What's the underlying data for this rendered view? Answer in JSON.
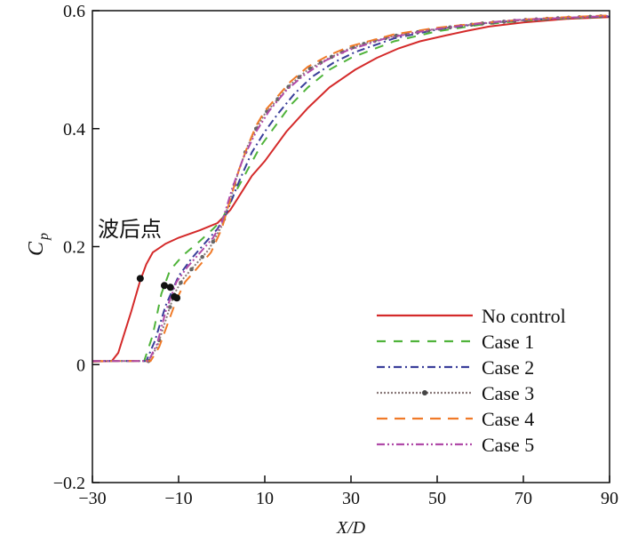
{
  "chart_data": {
    "type": "line",
    "title": "",
    "xlabel": "X/D",
    "ylabel": "C_p",
    "ylabel_main": "C",
    "ylabel_sub": "p",
    "xlim": [
      -30,
      90
    ],
    "ylim": [
      -0.2,
      0.6
    ],
    "xticks": [
      -30,
      -10,
      10,
      30,
      50,
      70,
      90
    ],
    "yticks": [
      -0.2,
      0,
      0.2,
      0.4,
      0.6
    ],
    "ytick_labels": [
      "−0.2",
      "0",
      "0.2",
      "0.4",
      "0.6"
    ],
    "xtick_labels": [
      "−30",
      "−10",
      "10",
      "30",
      "50",
      "70",
      "90"
    ],
    "grid": false,
    "legend_position": "bottom-right",
    "annotation": "波后点",
    "series": [
      {
        "name": "No control",
        "color": "#d42a2a",
        "dash": "",
        "x": [
          -30,
          -25.5,
          -24,
          -21,
          -19,
          -17.5,
          -16,
          -13,
          -10,
          -5,
          -1,
          2,
          4,
          7,
          10,
          15,
          20,
          25,
          31,
          36,
          41,
          46,
          52,
          57,
          62,
          70,
          80,
          90
        ],
        "y": [
          0.005,
          0.006,
          0.02,
          0.09,
          0.14,
          0.17,
          0.19,
          0.205,
          0.215,
          0.228,
          0.24,
          0.262,
          0.285,
          0.32,
          0.345,
          0.395,
          0.435,
          0.47,
          0.5,
          0.52,
          0.536,
          0.548,
          0.558,
          0.566,
          0.573,
          0.58,
          0.586,
          0.589
        ]
      },
      {
        "name": "Case 1",
        "color": "#4fb33a",
        "dash": "10,9",
        "x": [
          -30,
          -18,
          -16,
          -14,
          -12,
          -9,
          -5,
          -2,
          0,
          3,
          6,
          9,
          12,
          16,
          20,
          25,
          30,
          40,
          50,
          60,
          70,
          80,
          90
        ],
        "y": [
          0.006,
          0.006,
          0.05,
          0.12,
          0.16,
          0.185,
          0.21,
          0.23,
          0.245,
          0.29,
          0.33,
          0.37,
          0.4,
          0.44,
          0.47,
          0.5,
          0.52,
          0.548,
          0.565,
          0.576,
          0.583,
          0.587,
          0.59
        ]
      },
      {
        "name": "Case 2",
        "color": "#3a3f9a",
        "dash": "9,4,2,4",
        "x": [
          -30,
          -17.5,
          -15.5,
          -13,
          -10,
          -7,
          -4,
          -1,
          1,
          4,
          7,
          10,
          13,
          17,
          21,
          26,
          31,
          40,
          50,
          60,
          70,
          80,
          90
        ],
        "y": [
          0.006,
          0.006,
          0.04,
          0.1,
          0.15,
          0.18,
          0.205,
          0.23,
          0.255,
          0.31,
          0.36,
          0.395,
          0.425,
          0.46,
          0.488,
          0.512,
          0.53,
          0.553,
          0.568,
          0.578,
          0.584,
          0.588,
          0.59
        ]
      },
      {
        "name": "Case 3",
        "color": "#8a7a7a",
        "dash": "2,2",
        "marker": true,
        "x": [
          -30,
          -17,
          -15,
          -13,
          -11,
          -9,
          -6,
          -3,
          0,
          2,
          4,
          6,
          8,
          10,
          13,
          16,
          20,
          25,
          30,
          35,
          40,
          50,
          60,
          70,
          80,
          90
        ],
        "y": [
          0.006,
          0.006,
          0.03,
          0.075,
          0.12,
          0.145,
          0.17,
          0.195,
          0.235,
          0.28,
          0.33,
          0.37,
          0.4,
          0.425,
          0.45,
          0.475,
          0.5,
          0.52,
          0.537,
          0.548,
          0.557,
          0.569,
          0.578,
          0.584,
          0.588,
          0.591
        ]
      },
      {
        "name": "Case 4",
        "color": "#f07a28",
        "dash": "12,8",
        "x": [
          -30,
          -16.5,
          -14.5,
          -12.5,
          -10.5,
          -8.5,
          -5.5,
          -2.5,
          0,
          2,
          4,
          6,
          8,
          10,
          13,
          16,
          20,
          25,
          30,
          40,
          50,
          60,
          70,
          80,
          90
        ],
        "y": [
          0.006,
          0.006,
          0.03,
          0.07,
          0.11,
          0.14,
          0.165,
          0.19,
          0.23,
          0.28,
          0.33,
          0.37,
          0.405,
          0.43,
          0.455,
          0.48,
          0.505,
          0.525,
          0.54,
          0.56,
          0.571,
          0.579,
          0.585,
          0.589,
          0.592
        ]
      },
      {
        "name": "Case 5",
        "color": "#b04aa8",
        "dash": "9,3,2,3,2,3",
        "x": [
          -30,
          -17,
          -15,
          -13,
          -10.5,
          -8,
          -5,
          -2,
          0,
          2.5,
          5,
          8,
          11,
          15,
          19,
          24,
          29,
          38,
          48,
          58,
          68,
          80,
          90
        ],
        "y": [
          0.006,
          0.006,
          0.035,
          0.09,
          0.14,
          0.165,
          0.19,
          0.215,
          0.24,
          0.3,
          0.35,
          0.395,
          0.43,
          0.465,
          0.49,
          0.515,
          0.532,
          0.553,
          0.567,
          0.577,
          0.584,
          0.588,
          0.591
        ]
      }
    ],
    "shock_points": {
      "x": [
        -18.9,
        -13.3,
        -11.9,
        -11,
        -10.4
      ],
      "y": [
        0.146,
        0.134,
        0.131,
        0.115,
        0.113
      ]
    }
  }
}
